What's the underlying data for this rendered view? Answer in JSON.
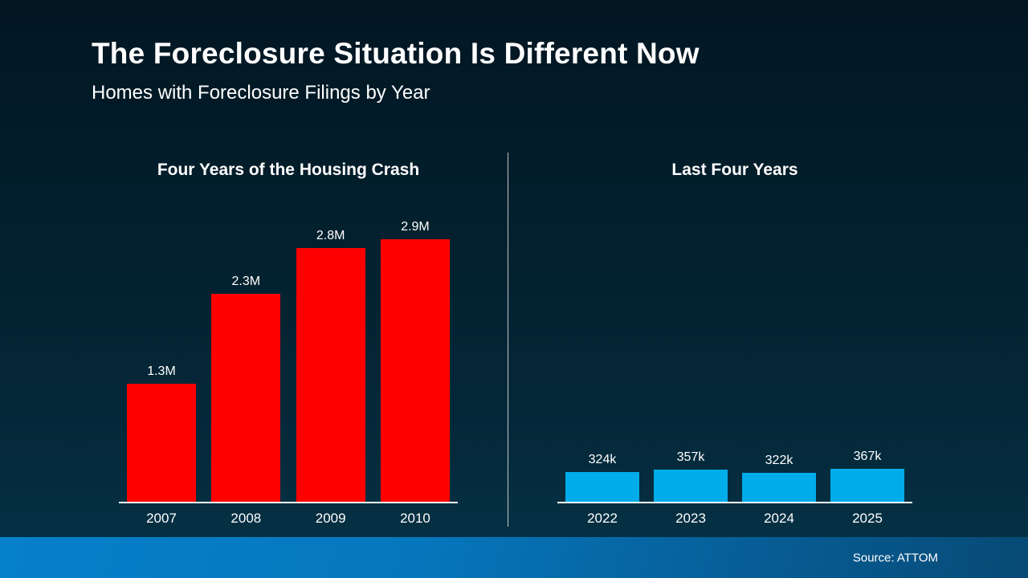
{
  "slide": {
    "title": "The Foreclosure Situation Is Different Now",
    "subtitle": "Homes with Foreclosure Filings by Year",
    "source": "Source: ATTOM"
  },
  "colors": {
    "background_top": "#021622",
    "background_bottom": "#063347",
    "crash_bar": "#FF0000",
    "recent_bar": "#00ACEA",
    "footer_left": "#0580CA",
    "footer_right": "#074A75",
    "text": "#FFFFFF",
    "axis_line": "#FFFFFF"
  },
  "chart_data": [
    {
      "type": "bar",
      "title": "Four Years of the Housing Crash",
      "categories": [
        "2007",
        "2008",
        "2009",
        "2010"
      ],
      "values": [
        1300000,
        2300000,
        2800000,
        2900000
      ],
      "value_labels": [
        "1.3M",
        "2.3M",
        "2.8M",
        "2.9M"
      ],
      "bar_color": "#FF0000",
      "xlabel": "",
      "ylabel": "",
      "ylim": [
        0,
        2900000
      ],
      "grid": false,
      "legend": "none",
      "note": "shares y-scale with second chart"
    },
    {
      "type": "bar",
      "title": "Last Four Years",
      "categories": [
        "2022",
        "2023",
        "2024",
        "2025"
      ],
      "values": [
        324000,
        357000,
        322000,
        367000
      ],
      "value_labels": [
        "324k",
        "357k",
        "322k",
        "367k"
      ],
      "bar_color": "#00ACEA",
      "xlabel": "",
      "ylabel": "",
      "ylim": [
        0,
        2900000
      ],
      "grid": false,
      "legend": "none",
      "note": "shares y-scale with first chart"
    }
  ]
}
